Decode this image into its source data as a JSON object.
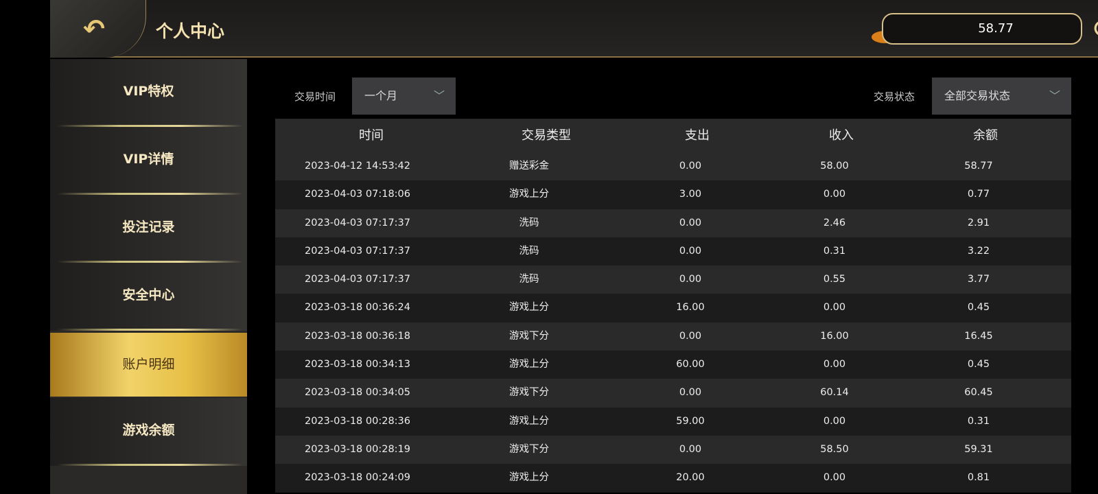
{
  "header": {
    "title": "个人中心",
    "balance": "58.77",
    "back_icon": "back-arrow-icon",
    "refresh_icon": "refresh-icon"
  },
  "sidebar": {
    "items": [
      {
        "label": "VIP特权"
      },
      {
        "label": "VIP详情"
      },
      {
        "label": "投注记录"
      },
      {
        "label": "安全中心"
      },
      {
        "label": "账户明细",
        "active": true
      },
      {
        "label": "游戏余额"
      }
    ]
  },
  "filters": {
    "time_label": "交易时间",
    "time_value": "一个月",
    "status_label": "交易状态",
    "status_value": "全部交易状态"
  },
  "table": {
    "columns": [
      "时间",
      "交易类型",
      "支出",
      "收入",
      "余额"
    ],
    "rows": [
      [
        "2023-04-12 14:53:42",
        "赠送彩金",
        "0.00",
        "58.00",
        "58.77"
      ],
      [
        "2023-04-03 07:18:06",
        "游戏上分",
        "3.00",
        "0.00",
        "0.77"
      ],
      [
        "2023-04-03 07:17:37",
        "洗码",
        "0.00",
        "2.46",
        "2.91"
      ],
      [
        "2023-04-03 07:17:37",
        "洗码",
        "0.00",
        "0.31",
        "3.22"
      ],
      [
        "2023-04-03 07:17:37",
        "洗码",
        "0.00",
        "0.55",
        "3.77"
      ],
      [
        "2023-03-18 00:36:24",
        "游戏上分",
        "16.00",
        "0.00",
        "0.45"
      ],
      [
        "2023-03-18 00:36:18",
        "游戏下分",
        "0.00",
        "16.00",
        "16.45"
      ],
      [
        "2023-03-18 00:34:13",
        "游戏上分",
        "60.00",
        "0.00",
        "0.45"
      ],
      [
        "2023-03-18 00:34:05",
        "游戏下分",
        "0.00",
        "60.14",
        "60.45"
      ],
      [
        "2023-03-18 00:28:36",
        "游戏上分",
        "59.00",
        "0.00",
        "0.31"
      ],
      [
        "2023-03-18 00:28:19",
        "游戏下分",
        "0.00",
        "58.50",
        "59.31"
      ],
      [
        "2023-03-18 00:24:09",
        "游戏上分",
        "20.00",
        "0.00",
        "0.81"
      ]
    ]
  }
}
